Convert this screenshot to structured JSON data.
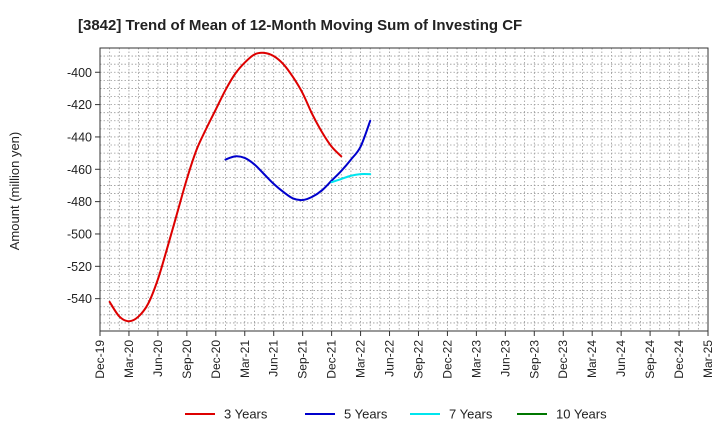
{
  "chart_data": {
    "type": "line",
    "title": "[3842]  Trend of Mean of 12-Month Moving Sum of Investing CF",
    "xlabel": "",
    "ylabel": "Amount (million yen)",
    "ylim": [
      -560,
      -385
    ],
    "yticks": [
      -540,
      -520,
      -500,
      -480,
      -460,
      -440,
      -420,
      -400
    ],
    "x_categories": [
      "Dec-19",
      "Mar-20",
      "Jun-20",
      "Sep-20",
      "Dec-20",
      "Mar-21",
      "Jun-21",
      "Sep-21",
      "Dec-21",
      "Mar-22",
      "Jun-22",
      "Sep-22",
      "Dec-22",
      "Mar-23",
      "Jun-23",
      "Sep-23",
      "Dec-23",
      "Mar-24",
      "Jun-24",
      "Sep-24",
      "Dec-24",
      "Mar-25"
    ],
    "grid": true,
    "legend_position": "bottom",
    "series": [
      {
        "name": "3 Years",
        "color": "#dd0000",
        "points": [
          [
            1,
            -542
          ],
          [
            2,
            -551
          ],
          [
            3,
            -554
          ],
          [
            4,
            -551
          ],
          [
            5,
            -543
          ],
          [
            6,
            -528
          ],
          [
            7,
            -508
          ],
          [
            8,
            -487
          ],
          [
            9,
            -466
          ],
          [
            10,
            -448
          ],
          [
            11,
            -435
          ],
          [
            12,
            -423
          ],
          [
            13,
            -411
          ],
          [
            14,
            -401
          ],
          [
            15,
            -394
          ],
          [
            16,
            -389
          ],
          [
            17,
            -388
          ],
          [
            18,
            -390
          ],
          [
            19,
            -395
          ],
          [
            20,
            -403
          ],
          [
            21,
            -413
          ],
          [
            22,
            -426
          ],
          [
            23,
            -437
          ],
          [
            24,
            -446
          ],
          [
            25,
            -452
          ]
        ]
      },
      {
        "name": "5 Years",
        "color": "#0000cc",
        "points": [
          [
            13,
            -454
          ],
          [
            14,
            -452
          ],
          [
            15,
            -453
          ],
          [
            16,
            -457
          ],
          [
            17,
            -463
          ],
          [
            18,
            -469
          ],
          [
            19,
            -474
          ],
          [
            20,
            -478
          ],
          [
            21,
            -479
          ],
          [
            22,
            -477
          ],
          [
            23,
            -473
          ],
          [
            24,
            -467
          ],
          [
            25,
            -461
          ],
          [
            26,
            -454
          ],
          [
            27,
            -446
          ],
          [
            28,
            -430
          ]
        ]
      },
      {
        "name": "7 Years",
        "color": "#00e5ee",
        "points": [
          [
            24,
            -468
          ],
          [
            25,
            -466
          ],
          [
            26,
            -464
          ],
          [
            27,
            -463
          ],
          [
            28,
            -463
          ]
        ]
      },
      {
        "name": "10 Years",
        "color": "#007700",
        "points": []
      }
    ]
  }
}
